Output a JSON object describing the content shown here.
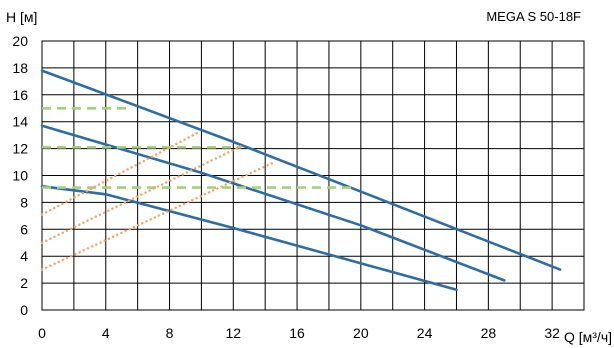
{
  "chart_data": {
    "type": "line",
    "title": "MEGA S 50-18F",
    "xlabel": "Q [м³/ч]",
    "ylabel": "H [м]",
    "xlim": [
      0,
      34
    ],
    "ylim": [
      0,
      20
    ],
    "xticks": [
      0,
      4,
      8,
      12,
      16,
      20,
      24,
      28,
      32
    ],
    "yticks": [
      0,
      2,
      4,
      6,
      8,
      10,
      12,
      14,
      16,
      18,
      20
    ],
    "grid": true,
    "series": [
      {
        "style": "pump-curve",
        "color": "#2e6da4",
        "x": [
          0,
          12,
          20,
          32.5
        ],
        "y": [
          17.8,
          12.5,
          8.8,
          3.0
        ]
      },
      {
        "style": "pump-curve",
        "color": "#2e6da4",
        "x": [
          0,
          10,
          20,
          29
        ],
        "y": [
          13.7,
          10.2,
          6.3,
          2.2
        ]
      },
      {
        "style": "pump-curve",
        "color": "#2e6da4",
        "x": [
          0,
          4,
          12,
          26
        ],
        "y": [
          9.2,
          8.6,
          6.1,
          1.5
        ]
      },
      {
        "style": "max-head-dashed",
        "color": "#a5d17a",
        "x": [
          0,
          5.5
        ],
        "y": [
          15.0,
          15.0
        ]
      },
      {
        "style": "max-head-dashed",
        "color": "#a5d17a",
        "x": [
          0,
          12.5
        ],
        "y": [
          12.1,
          12.1
        ]
      },
      {
        "style": "max-head-dashed",
        "color": "#a5d17a",
        "x": [
          0,
          19.5
        ],
        "y": [
          9.1,
          9.1
        ]
      },
      {
        "style": "system-curve-dotted",
        "color": "#f4a460",
        "x": [
          0,
          9.8
        ],
        "y": [
          7.1,
          13.2
        ]
      },
      {
        "style": "system-curve-dotted",
        "color": "#f4a460",
        "x": [
          0,
          12.7
        ],
        "y": [
          5.0,
          12.3
        ]
      },
      {
        "style": "system-curve-dotted",
        "color": "#f4a460",
        "x": [
          0,
          14.6
        ],
        "y": [
          3.0,
          11.0
        ]
      }
    ]
  }
}
